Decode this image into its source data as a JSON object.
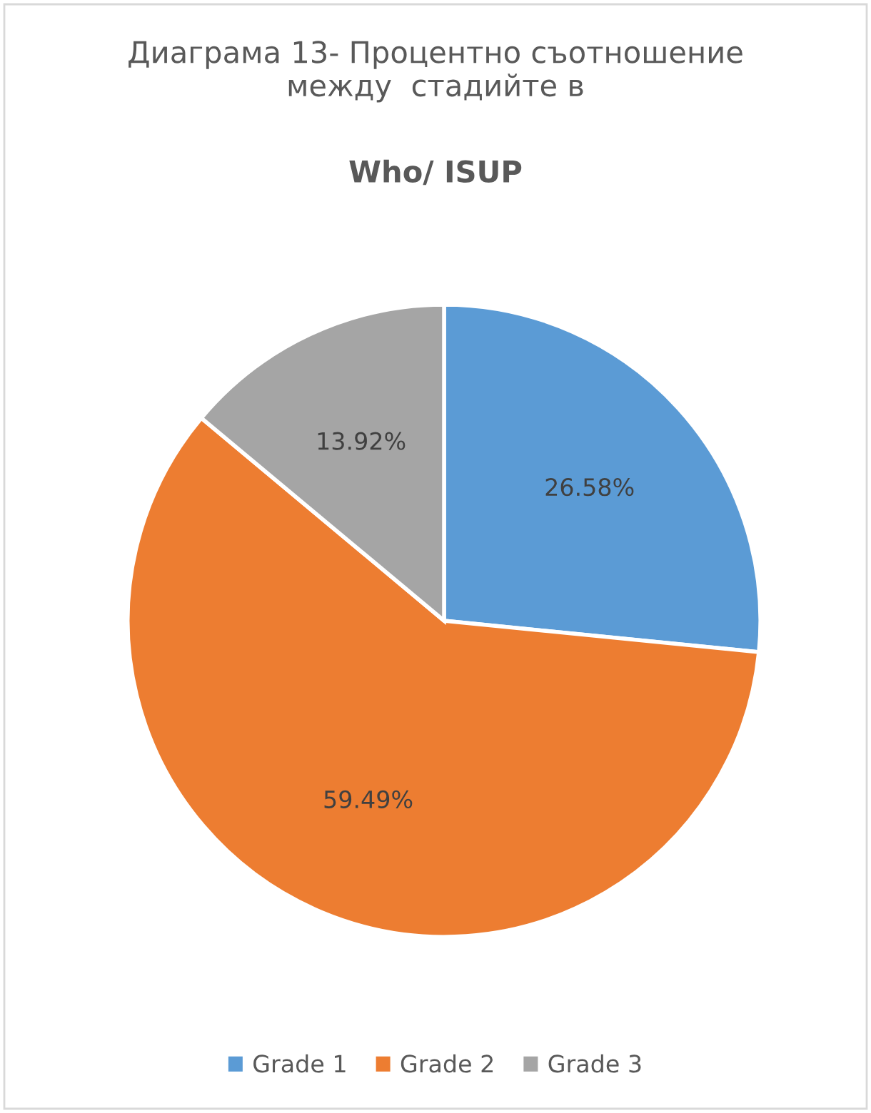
{
  "chart_data": {
    "type": "pie",
    "title": "Диаграма 13- Процентно съотношение между  стадийте в",
    "subtitle": "Who/ ISUP",
    "categories": [
      "Grade 1",
      "Grade 2",
      "Grade 3"
    ],
    "values": [
      26.58,
      59.49,
      13.92
    ],
    "colors": [
      "#5b9bd5",
      "#ed7d31",
      "#a5a5a5"
    ],
    "value_labels": [
      "26.58%",
      "59.49%",
      "13.92%"
    ],
    "legend": "bottom"
  }
}
